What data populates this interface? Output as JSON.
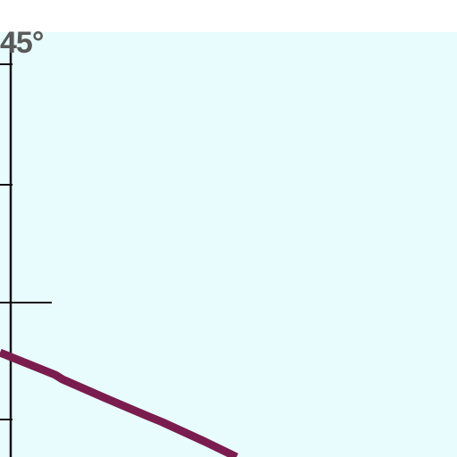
{
  "map": {
    "background_color": "#e8fbfd",
    "graticule_color": "#111111",
    "route_color": "#7a1d4e",
    "coordinate_label": "45°"
  }
}
